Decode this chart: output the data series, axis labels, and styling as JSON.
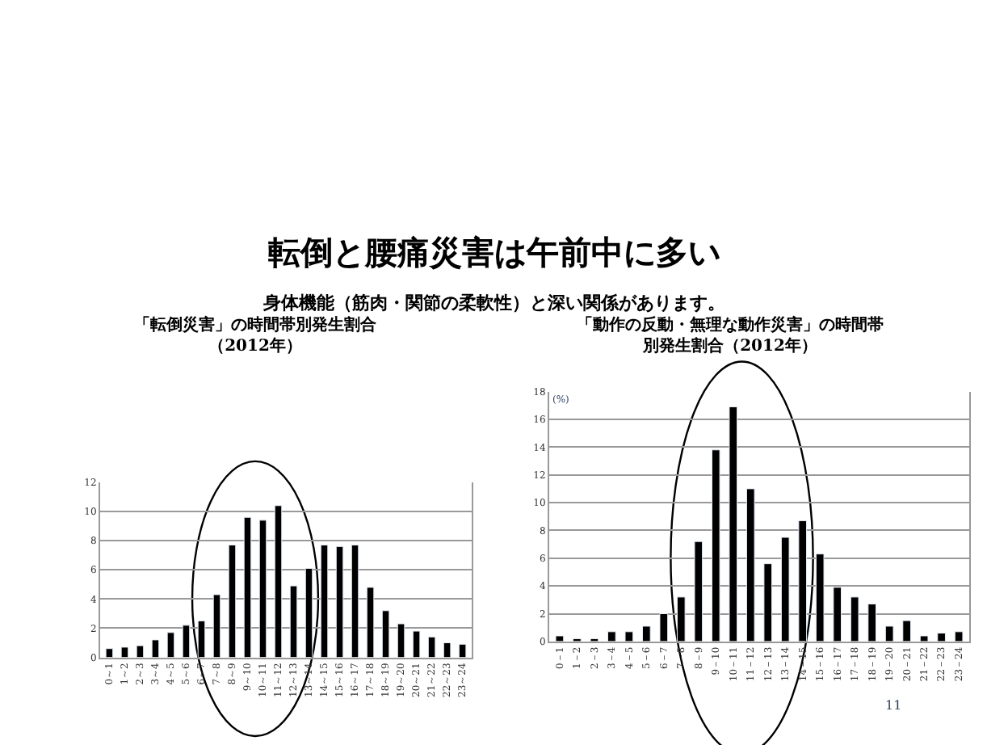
{
  "chart_data": [
    {
      "type": "bar",
      "title": "「転倒災害」の時間帯別発生割合（2012年）",
      "annotations": [
        "転倒と腰痛災害は午前中に多い",
        "身体機能（筋肉・関節の柔軟性）と深い関係があります。"
      ],
      "categories": [
        "0～1",
        "1～2",
        "2～3",
        "3～4",
        "4～5",
        "5～6",
        "6～7",
        "7～8",
        "8～9",
        "9～10",
        "10～11",
        "11～12",
        "12～13",
        "13～14",
        "14～15",
        "15～16",
        "16～17",
        "17～18",
        "18～19",
        "19～20",
        "20～21",
        "21～22",
        "22～23",
        "23～24"
      ],
      "values": [
        0.6,
        0.7,
        0.8,
        1.2,
        1.7,
        2.2,
        2.5,
        4.3,
        7.7,
        9.6,
        9.4,
        10.4,
        4.9,
        6.1,
        7.7,
        7.6,
        7.7,
        4.8,
        3.2,
        2.3,
        1.8,
        1.4,
        1.0,
        0.9
      ],
      "color": "#000000",
      "ylim": [
        0,
        12
      ],
      "yticks": [
        0,
        2,
        4,
        6,
        8,
        10,
        12
      ],
      "grid": "y"
    },
    {
      "type": "bar",
      "title": "「動作の反動・無理な動作災害」の時間帯別発生割合（2012年）",
      "ylabel": "(%)",
      "annotations": [
        "11"
      ],
      "categories": [
        "0－1",
        "1－2",
        "2－3",
        "3－4",
        "4－5",
        "5－6",
        "6－7",
        "7－8",
        "8－9",
        "9－10",
        "10－11",
        "11－12",
        "12－13",
        "13－14",
        "14－15",
        "15－16",
        "16－17",
        "17－18",
        "18－19",
        "19－20",
        "20－21",
        "21－22",
        "22－23",
        "23－24"
      ],
      "values": [
        0.4,
        0.2,
        0.2,
        0.7,
        0.7,
        1.1,
        2.0,
        3.2,
        7.2,
        13.8,
        16.9,
        11.0,
        5.6,
        7.5,
        8.7,
        6.3,
        3.9,
        3.2,
        2.7,
        1.1,
        1.5,
        0.4,
        0.6,
        0.7
      ],
      "color": "#000000",
      "ylim": [
        0,
        18
      ],
      "yticks": [
        0,
        2,
        4,
        6,
        8,
        10,
        12,
        14,
        16,
        18
      ],
      "grid": "y"
    }
  ]
}
